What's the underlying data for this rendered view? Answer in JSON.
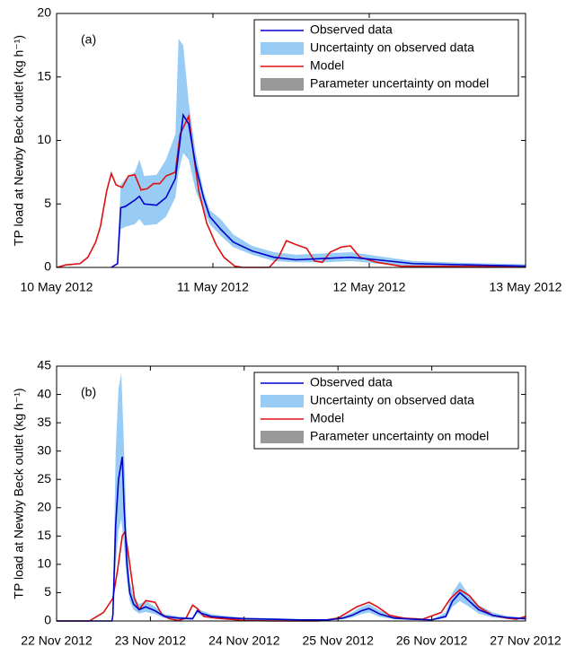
{
  "chart_data": [
    {
      "type": "line",
      "annotation": "(a)",
      "ylabel": "TP load at Newby Beck outlet (kg h⁻¹)",
      "legend": "upper right",
      "xlim": [
        0,
        3
      ],
      "xticks": [
        {
          "value": 0,
          "label": "10 May 2012"
        },
        {
          "value": 1,
          "label": "11 May 2012"
        },
        {
          "value": 2,
          "label": "12 May 2012"
        },
        {
          "value": 3,
          "label": "13 May 2012"
        }
      ],
      "ylim": [
        0,
        20
      ],
      "yticks": [
        0,
        5,
        10,
        15,
        20
      ],
      "series": [
        {
          "name": "Observed data",
          "color": "#0000cc",
          "x": [
            0.35,
            0.39,
            0.41,
            0.44,
            0.5,
            0.53,
            0.56,
            0.64,
            0.7,
            0.76,
            0.81,
            0.845,
            0.89,
            0.94,
            0.98,
            1.05,
            1.13,
            1.25,
            1.39,
            1.53,
            1.71,
            1.88,
            2.05,
            2.28,
            2.63,
            3
          ],
          "values": [
            0,
            0.3,
            4.7,
            4.8,
            5.3,
            5.6,
            5.0,
            4.9,
            5.5,
            7.0,
            12.0,
            11.3,
            8.0,
            5.5,
            4.0,
            3.0,
            2.0,
            1.3,
            0.8,
            0.6,
            0.7,
            0.8,
            0.6,
            0.3,
            0.2,
            0.1
          ]
        },
        {
          "name": "Uncertainty on observed data",
          "color": "#99ccf5",
          "x": [
            0.39,
            0.41,
            0.44,
            0.5,
            0.53,
            0.56,
            0.64,
            0.7,
            0.76,
            0.78,
            0.81,
            0.845,
            0.89,
            0.94,
            0.98,
            1.05,
            1.13,
            1.25,
            1.39,
            1.53,
            1.71,
            1.88,
            2.05,
            2.28,
            2.63,
            3
          ],
          "upper": [
            0.3,
            6.5,
            7,
            7.5,
            8.5,
            7.2,
            7.3,
            8.5,
            10.5,
            18,
            17.5,
            13,
            9,
            6,
            4.5,
            3.8,
            2.6,
            1.7,
            1.2,
            1.0,
            1.1,
            1.2,
            0.9,
            0.5,
            0.35,
            0.25
          ],
          "lower": [
            0.3,
            3,
            3.2,
            3.4,
            3.8,
            3.3,
            3.4,
            4,
            5.5,
            7.5,
            9,
            8.5,
            6,
            4.5,
            3.4,
            2.5,
            1.6,
            1,
            0.5,
            0.4,
            0.4,
            0.5,
            0.3,
            0.1,
            0.05,
            0.02
          ]
        },
        {
          "name": "Model",
          "color": "#dd1111",
          "x": [
            0,
            0.06,
            0.15,
            0.2,
            0.25,
            0.28,
            0.32,
            0.35,
            0.38,
            0.42,
            0.46,
            0.5,
            0.54,
            0.58,
            0.62,
            0.66,
            0.7,
            0.76,
            0.79,
            0.845,
            0.875,
            0.91,
            0.96,
            1.02,
            1.07,
            1.14,
            1.19,
            1.36,
            1.42,
            1.47,
            1.53,
            1.6,
            1.65,
            1.7,
            1.75,
            1.82,
            1.88,
            1.94,
            2.05,
            2.2,
            3
          ],
          "values": [
            0,
            0.2,
            0.3,
            0.8,
            2,
            3.2,
            6,
            7.4,
            6.5,
            6.3,
            7.2,
            7.3,
            6.1,
            6.2,
            6.6,
            6.6,
            7.2,
            7.5,
            10.5,
            11.9,
            9,
            6,
            3.5,
            1.8,
            0.8,
            0.1,
            0,
            0,
            0.8,
            2.1,
            1.8,
            1.5,
            0.5,
            0.4,
            1.2,
            1.6,
            1.7,
            0.8,
            0.4,
            0.1,
            0.05
          ]
        },
        {
          "name": "Parameter uncertainty on model",
          "color": "#999999"
        }
      ]
    },
    {
      "type": "line",
      "annotation": "(b)",
      "ylabel": "TP load at Newby Beck outlet (kg h⁻¹)",
      "legend": "upper right",
      "xlim": [
        0,
        5
      ],
      "xticks": [
        {
          "value": 0,
          "label": "22 Nov 2012"
        },
        {
          "value": 1,
          "label": "23 Nov 2012"
        },
        {
          "value": 2,
          "label": "24 Nov 2012"
        },
        {
          "value": 3,
          "label": "25 Nov 2012"
        },
        {
          "value": 4,
          "label": "26 Nov 2012"
        },
        {
          "value": 5,
          "label": "27 Nov 2012"
        }
      ],
      "ylim": [
        0,
        45
      ],
      "yticks": [
        0,
        5,
        10,
        15,
        20,
        25,
        30,
        35,
        40,
        45
      ],
      "series": [
        {
          "name": "Observed data",
          "color": "#0000cc",
          "x": [
            0,
            0.59,
            0.6,
            0.63,
            0.66,
            0.7,
            0.72,
            0.75,
            0.78,
            0.82,
            0.88,
            0.95,
            1.05,
            1.15,
            1.3,
            1.45,
            1.5,
            1.55,
            1.65,
            1.8,
            2.0,
            2.3,
            2.6,
            2.9,
            3.05,
            3.15,
            3.25,
            3.33,
            3.45,
            3.6,
            3.8,
            4.0,
            4.15,
            4.22,
            4.3,
            4.38,
            4.5,
            4.65,
            4.8,
            5.0
          ],
          "values": [
            0,
            0,
            1,
            17,
            25,
            29,
            20,
            10,
            5,
            3,
            2,
            2.5,
            1.8,
            0.8,
            0.5,
            0.4,
            1.8,
            1.3,
            0.8,
            0.6,
            0.4,
            0.3,
            0.2,
            0.2,
            0.5,
            1.0,
            1.8,
            2.2,
            1.2,
            0.5,
            0.3,
            0.2,
            0.8,
            3.5,
            5.0,
            3.8,
            2.0,
            1.0,
            0.6,
            0.4
          ]
        },
        {
          "name": "Uncertainty on observed data",
          "color": "#99ccf5",
          "x": [
            0.6,
            0.63,
            0.66,
            0.69,
            0.72,
            0.75,
            0.78,
            0.82,
            0.88,
            0.95,
            1.05,
            1.15,
            1.3,
            1.45,
            1.5,
            1.55,
            1.65,
            1.8,
            2.0,
            2.3,
            2.6,
            2.9,
            3.05,
            3.15,
            3.25,
            3.33,
            3.45,
            3.6,
            3.8,
            4.0,
            4.15,
            4.22,
            4.3,
            4.38,
            4.5,
            4.65,
            4.8,
            5.0
          ],
          "upper": [
            2,
            30,
            41,
            43.8,
            30,
            14,
            7,
            4.5,
            3,
            3.5,
            2.5,
            1.2,
            0.8,
            0.6,
            2.3,
            1.8,
            1.2,
            0.9,
            0.6,
            0.5,
            0.3,
            0.3,
            0.8,
            1.5,
            2.5,
            3,
            1.8,
            0.8,
            0.5,
            0.3,
            1.5,
            5,
            7,
            5,
            2.8,
            1.5,
            0.9,
            0.6
          ],
          "lower": [
            0.5,
            10,
            16,
            18,
            13,
            7,
            3.5,
            2,
            1.3,
            1.6,
            1.2,
            0.5,
            0.3,
            0.2,
            1.3,
            0.9,
            0.5,
            0.4,
            0.2,
            0.1,
            0.1,
            0.1,
            0.3,
            0.6,
            1.2,
            1.5,
            0.7,
            0.3,
            0.2,
            0.1,
            0.5,
            2.5,
            3.5,
            2.7,
            1.3,
            0.6,
            0.4,
            0.2
          ]
        },
        {
          "name": "Model",
          "color": "#dd1111",
          "x": [
            0,
            0.35,
            0.4,
            0.5,
            0.6,
            0.65,
            0.7,
            0.73,
            0.78,
            0.83,
            0.88,
            0.95,
            1.05,
            1.12,
            1.2,
            1.3,
            1.38,
            1.45,
            1.5,
            1.57,
            1.7,
            1.85,
            2.0,
            2.3,
            2.8,
            3.0,
            3.1,
            3.2,
            3.33,
            3.42,
            3.55,
            3.7,
            3.9,
            4.1,
            4.2,
            4.3,
            4.4,
            4.5,
            4.65,
            4.8,
            4.9,
            5.0
          ],
          "values": [
            0,
            0,
            0.5,
            1.5,
            4,
            9,
            15,
            15.8,
            10,
            4,
            2,
            3.6,
            3.3,
            1.2,
            0.4,
            0.1,
            0.5,
            2.8,
            2.2,
            0.8,
            0.5,
            0.3,
            0.1,
            0,
            0,
            0.5,
            1.5,
            2.5,
            3.3,
            2.5,
            1,
            0.5,
            0.3,
            1.5,
            4,
            5.5,
            4.5,
            2.5,
            1,
            0.5,
            0.3,
            0.8
          ]
        },
        {
          "name": "Parameter uncertainty on model",
          "color": "#999999"
        }
      ]
    }
  ]
}
